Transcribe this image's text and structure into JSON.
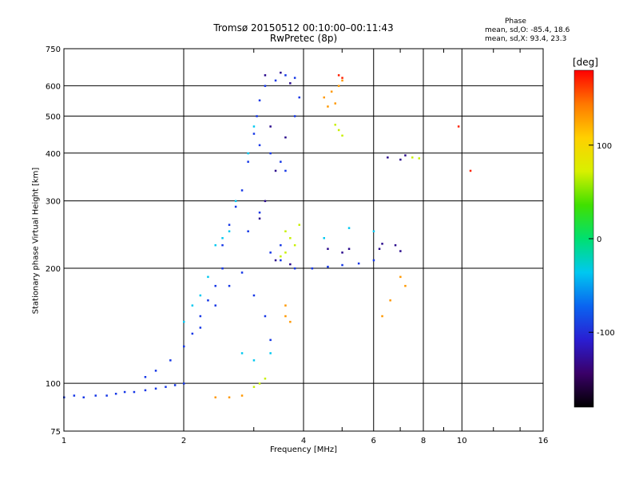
{
  "header": {
    "title_line1": "Tromsø 20150512 00:10:00–00:11:43",
    "title_line2": "RwPretec (8p)"
  },
  "phase_note": {
    "heading": "Phase",
    "line_o": "mean, sd,O: -85.4, 18.6",
    "line_x": "mean, sd,X: 93.4, 23.3"
  },
  "chart_data": {
    "type": "scatter",
    "title": "Tromsø 20150512 00:10:00–00:11:43",
    "subtitle": "RwPretec (8p)",
    "xlabel": "Frequency [MHz]",
    "ylabel": "Stationary phase Virtual Height [km]",
    "xscale": "log",
    "yscale": "log",
    "xlim": [
      1,
      16
    ],
    "ylim": [
      75,
      750
    ],
    "xticks": [
      1,
      2,
      4,
      6,
      8,
      10,
      16
    ],
    "yticks": [
      75,
      100,
      200,
      300,
      400,
      500,
      600,
      750
    ],
    "grid": true,
    "colorbar": {
      "label": "[deg]",
      "ticks": [
        100,
        0,
        -100
      ],
      "range": [
        -180,
        180
      ],
      "colors": [
        "#000000",
        "#3a0068",
        "#2a1ed2",
        "#0a64f0",
        "#00c8f0",
        "#00e070",
        "#40e000",
        "#d8f000",
        "#ffd000",
        "#ff7800",
        "#ff0000"
      ]
    },
    "series": [
      {
        "color": "#1436e6",
        "points": [
          [
            1.0,
            92
          ],
          [
            1.06,
            93
          ],
          [
            1.12,
            92
          ],
          [
            1.2,
            93
          ],
          [
            1.28,
            93
          ],
          [
            1.35,
            94
          ],
          [
            1.42,
            95
          ],
          [
            1.5,
            95
          ],
          [
            1.6,
            96
          ],
          [
            1.7,
            97
          ],
          [
            1.8,
            98
          ],
          [
            1.9,
            99
          ],
          [
            2.0,
            100
          ],
          [
            1.6,
            104
          ],
          [
            1.7,
            108
          ],
          [
            1.85,
            115
          ],
          [
            2.0,
            125
          ],
          [
            2.1,
            135
          ],
          [
            2.2,
            150
          ],
          [
            2.3,
            165
          ],
          [
            2.4,
            180
          ],
          [
            2.5,
            200
          ],
          [
            2.5,
            230
          ],
          [
            2.6,
            260
          ],
          [
            2.7,
            290
          ],
          [
            2.8,
            320
          ],
          [
            2.9,
            380
          ],
          [
            3.0,
            450
          ],
          [
            3.05,
            500
          ],
          [
            3.1,
            550
          ],
          [
            3.2,
            600
          ],
          [
            3.4,
            620
          ],
          [
            3.6,
            640
          ],
          [
            3.8,
            630
          ],
          [
            3.1,
            420
          ],
          [
            3.3,
            400
          ],
          [
            3.5,
            380
          ],
          [
            3.6,
            360
          ],
          [
            3.8,
            500
          ],
          [
            3.9,
            560
          ],
          [
            2.2,
            140
          ],
          [
            2.4,
            160
          ],
          [
            2.6,
            180
          ],
          [
            2.8,
            195
          ],
          [
            3.0,
            170
          ],
          [
            3.2,
            150
          ],
          [
            3.3,
            130
          ],
          [
            3.5,
            210
          ],
          [
            3.8,
            200
          ],
          [
            4.2,
            200
          ],
          [
            4.6,
            202
          ],
          [
            5.0,
            204
          ],
          [
            5.5,
            206
          ],
          [
            6.0,
            210
          ],
          [
            3.3,
            220
          ],
          [
            3.5,
            230
          ],
          [
            2.9,
            250
          ],
          [
            3.1,
            280
          ]
        ]
      },
      {
        "color": "#2a0a8c",
        "points": [
          [
            3.2,
            640
          ],
          [
            3.5,
            650
          ],
          [
            3.7,
            610
          ],
          [
            3.3,
            470
          ],
          [
            3.6,
            440
          ],
          [
            3.4,
            360
          ],
          [
            3.2,
            300
          ],
          [
            3.1,
            270
          ],
          [
            3.4,
            210
          ],
          [
            3.7,
            205
          ],
          [
            6.5,
            390
          ],
          [
            7.0,
            385
          ],
          [
            7.2,
            395
          ],
          [
            5.0,
            220
          ],
          [
            5.2,
            225
          ],
          [
            6.2,
            225
          ],
          [
            6.8,
            230
          ],
          [
            7.0,
            222
          ],
          [
            6.3,
            232
          ],
          [
            4.6,
            225
          ]
        ]
      },
      {
        "color": "#00c8f0",
        "points": [
          [
            2.7,
            300
          ],
          [
            2.9,
            400
          ],
          [
            3.0,
            470
          ],
          [
            2.6,
            250
          ],
          [
            2.5,
            240
          ],
          [
            2.4,
            230
          ],
          [
            2.3,
            190
          ],
          [
            2.2,
            170
          ],
          [
            2.1,
            160
          ],
          [
            2.0,
            145
          ],
          [
            3.3,
            120
          ],
          [
            3.0,
            115
          ],
          [
            2.8,
            120
          ],
          [
            4.5,
            240
          ],
          [
            5.2,
            255
          ],
          [
            6.0,
            250
          ]
        ]
      },
      {
        "color": "#c8f000",
        "points": [
          [
            3.6,
            250
          ],
          [
            3.7,
            240
          ],
          [
            3.8,
            230
          ],
          [
            3.6,
            220
          ],
          [
            3.9,
            260
          ],
          [
            3.5,
            215
          ],
          [
            4.8,
            475
          ],
          [
            4.9,
            460
          ],
          [
            5.0,
            445
          ],
          [
            7.5,
            390
          ],
          [
            7.8,
            388
          ],
          [
            3.0,
            98
          ],
          [
            3.1,
            100
          ],
          [
            3.2,
            103
          ]
        ]
      },
      {
        "color": "#ff9800",
        "points": [
          [
            4.5,
            560
          ],
          [
            4.7,
            580
          ],
          [
            4.9,
            600
          ],
          [
            5.0,
            620
          ],
          [
            4.6,
            530
          ],
          [
            4.8,
            540
          ],
          [
            2.4,
            92
          ],
          [
            2.6,
            92
          ],
          [
            2.8,
            93
          ],
          [
            3.6,
            150
          ],
          [
            3.7,
            145
          ],
          [
            3.6,
            160
          ],
          [
            7.2,
            180
          ],
          [
            7.0,
            190
          ],
          [
            6.3,
            150
          ],
          [
            6.6,
            165
          ]
        ]
      },
      {
        "color": "#ff2000",
        "points": [
          [
            4.9,
            640
          ],
          [
            5.0,
            630
          ],
          [
            10.5,
            360
          ],
          [
            9.8,
            470
          ]
        ]
      }
    ]
  }
}
